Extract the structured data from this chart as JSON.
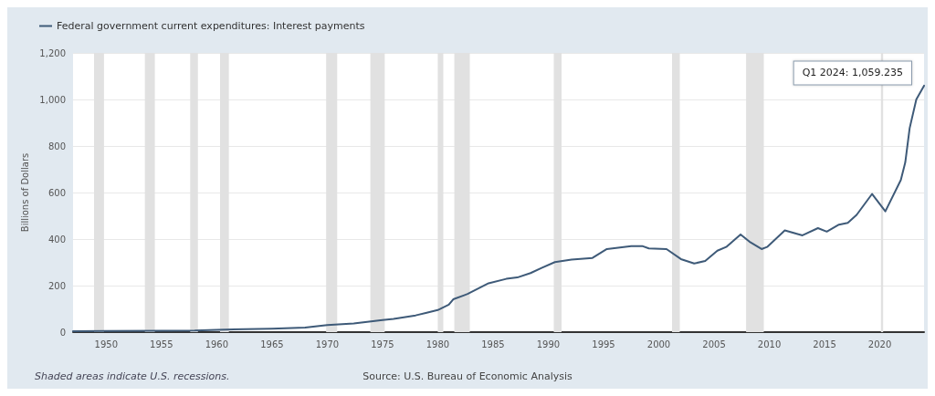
{
  "chart_data": {
    "type": "line",
    "ylabel": "Billions of Dollars",
    "x": [
      1947,
      1950,
      1955,
      1958,
      1960,
      1965,
      1968,
      1970,
      1972.4,
      1975,
      1976,
      1978,
      1979,
      1980,
      1981,
      1981.4,
      1982.7,
      1984.6,
      1986.2,
      1987.2,
      1988.4,
      1989.4,
      1990.6,
      1992.1,
      1994,
      1995.3,
      1997.5,
      1998.5,
      1999.1,
      2000.7,
      2002,
      2003.2,
      2004.2,
      2005.3,
      2006.1,
      2007.4,
      2008.2,
      2009.3,
      2009.8,
      2011.4,
      2013,
      2014.4,
      2015.2,
      2016.3,
      2017.1,
      2017.9,
      2019.3,
      2020.5,
      2021.9,
      2022.3,
      2022.7,
      2023.3,
      2024
    ],
    "series": [
      {
        "name": "Federal government current expenditures: Interest payments",
        "color": "#3e5a78",
        "values": [
          4,
          5,
          6,
          7,
          10,
          15,
          20,
          30,
          37,
          52,
          57,
          72,
          83,
          95,
          118,
          141,
          164,
          210,
          229,
          235,
          254,
          276,
          301,
          312,
          319,
          357,
          370,
          370,
          360,
          357,
          314,
          295,
          306,
          350,
          366,
          420,
          389,
          357,
          366,
          437,
          416,
          447,
          432,
          462,
          470,
          504,
          594,
          519,
          654,
          729,
          877,
          1000,
          1059.235
        ]
      }
    ],
    "xlim": [
      1947,
      2024
    ],
    "xticks": [
      1950,
      1955,
      1960,
      1965,
      1970,
      1975,
      1980,
      1985,
      1990,
      1995,
      2000,
      2005,
      2010,
      2015,
      2020
    ],
    "ylim": [
      0,
      1200
    ],
    "yticks": [
      0,
      200,
      400,
      600,
      800,
      {
        "value": 1000,
        "label": "1,000"
      },
      {
        "value": 1200,
        "label": "1,200"
      }
    ],
    "grid": "y",
    "legend": "top left",
    "marker": "none",
    "line_style": "solid",
    "bands": [
      {
        "axis": "x",
        "from": 1948.9,
        "to": 1949.8,
        "color": "#e1e1e1"
      },
      {
        "axis": "x",
        "from": 1953.5,
        "to": 1954.4,
        "color": "#e1e1e1"
      },
      {
        "axis": "x",
        "from": 1957.6,
        "to": 1958.3,
        "color": "#e1e1e1"
      },
      {
        "axis": "x",
        "from": 1960.3,
        "to": 1961.1,
        "color": "#e1e1e1"
      },
      {
        "axis": "x",
        "from": 1969.9,
        "to": 1970.9,
        "color": "#e1e1e1"
      },
      {
        "axis": "x",
        "from": 1973.9,
        "to": 1975.2,
        "color": "#e1e1e1"
      },
      {
        "axis": "x",
        "from": 1980,
        "to": 1980.5,
        "color": "#e1e1e1"
      },
      {
        "axis": "x",
        "from": 1981.5,
        "to": 1982.9,
        "color": "#e1e1e1"
      },
      {
        "axis": "x",
        "from": 1990.5,
        "to": 1991.2,
        "color": "#e1e1e1"
      },
      {
        "axis": "x",
        "from": 2001.2,
        "to": 2001.9,
        "color": "#e1e1e1"
      },
      {
        "axis": "x",
        "from": 2007.9,
        "to": 2009.5,
        "color": "#e1e1e1"
      },
      {
        "axis": "x",
        "from": 2020.1,
        "to": 2020.3,
        "color": "#e1e1e1"
      }
    ],
    "annotations": [
      {
        "text": "Q1 2024: 1,059.235",
        "x": 2024,
        "y": 1059.235
      },
      "Source: U.S. Bureau of Economic Analysis",
      "Shaded areas indicate U.S. recessions."
    ]
  }
}
